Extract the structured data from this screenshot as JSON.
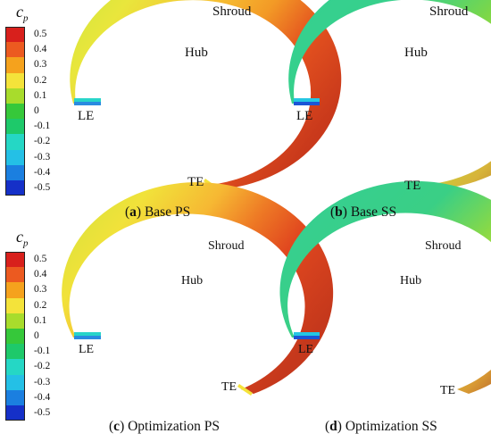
{
  "legend": {
    "title": "c",
    "title_sub": "p",
    "ticks": [
      "0.5",
      "0.4",
      "0.3",
      "0.2",
      "0.1",
      "0",
      "-0.1",
      "-0.2",
      "-0.3",
      "-0.4",
      "-0.5"
    ],
    "colors": [
      "#d8201c",
      "#ec5a20",
      "#f5a21d",
      "#f4e33a",
      "#a8dc2c",
      "#36c83a",
      "#1ec96a",
      "#25d7c5",
      "#24c0e6",
      "#1b7fe0",
      "#1530c8"
    ]
  },
  "labels": {
    "shroud": "Shroud",
    "hub": "Hub",
    "le": "LE",
    "te": "TE"
  },
  "panels": [
    {
      "id": "a",
      "letter": "a",
      "title": "Base PS"
    },
    {
      "id": "b",
      "letter": "b",
      "title": "Base SS"
    },
    {
      "id": "c",
      "letter": "c",
      "title": "Optimization PS"
    },
    {
      "id": "d",
      "letter": "d",
      "title": "Optimization SS"
    }
  ]
}
